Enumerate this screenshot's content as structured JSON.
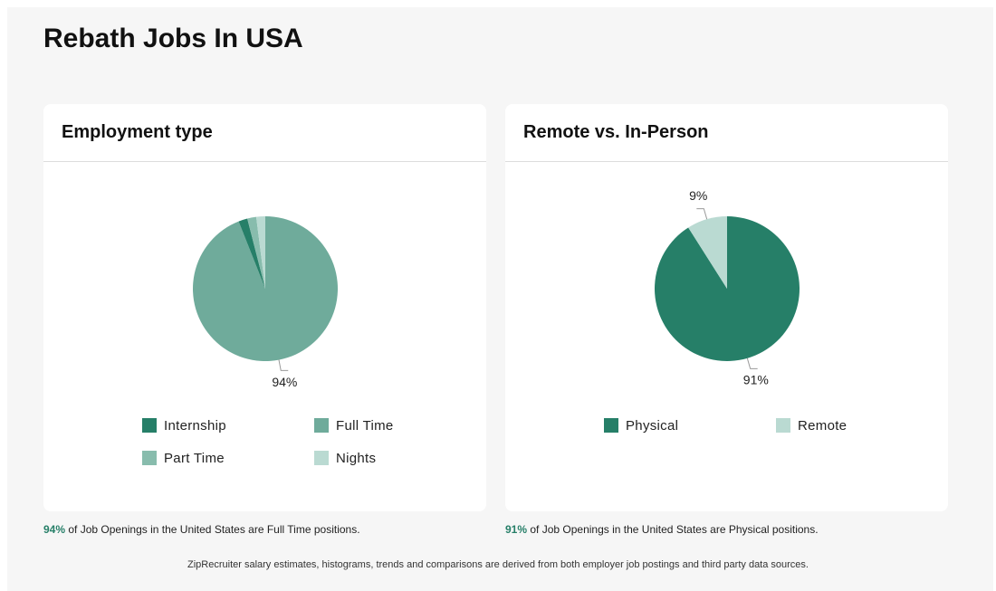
{
  "page_title": "Rebath Jobs In USA",
  "chart_data": [
    {
      "type": "pie",
      "title": "Employment type",
      "categories": [
        "Internship",
        "Full Time",
        "Part Time",
        "Nights"
      ],
      "values": [
        2,
        94,
        2,
        2
      ],
      "value_labels": [
        null,
        "94%",
        null,
        null
      ],
      "colors": [
        "#267f68",
        "#6fab9b",
        "#88bcad",
        "#badad2"
      ],
      "slice_order": [
        1,
        0,
        2,
        3
      ]
    },
    {
      "type": "pie",
      "title": "Remote vs. In-Person",
      "categories": [
        "Physical",
        "Remote"
      ],
      "values": [
        91,
        9
      ],
      "value_labels": [
        "91%",
        "9%"
      ],
      "colors": [
        "#267f68",
        "#badad2"
      ],
      "slice_order": [
        0,
        1
      ]
    }
  ],
  "notes": [
    "of Job Openings in the United States are Full Time positions.",
    "of Job Openings in the United States are Physical positions."
  ],
  "footer": "ZipRecruiter salary estimates, histograms, trends and comparisons are derived from both employer job postings and third party data sources."
}
